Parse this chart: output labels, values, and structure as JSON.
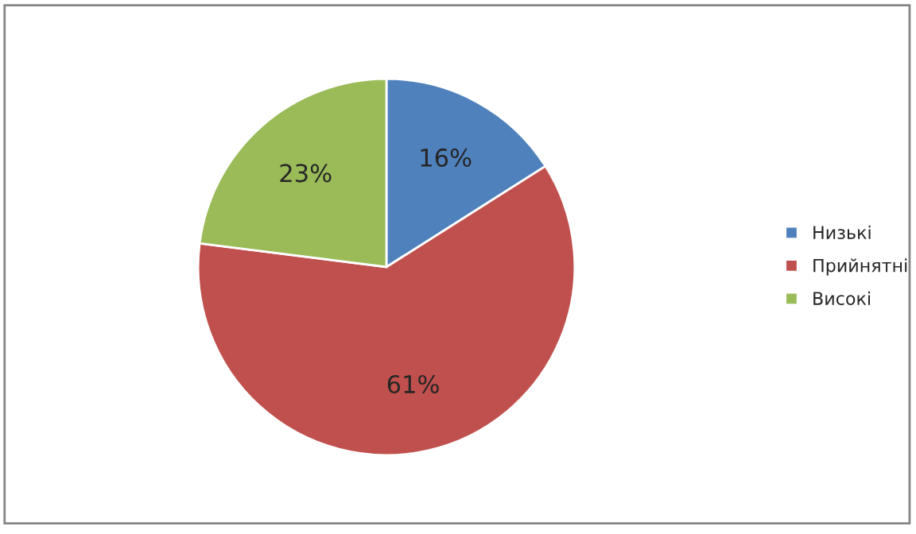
{
  "chart_data": {
    "type": "pie",
    "categories": [
      "Низькі",
      "Прийнятні",
      "Високі"
    ],
    "values": [
      16,
      61,
      23
    ],
    "colors": [
      "#4f81bd",
      "#c0504d",
      "#9bbb59"
    ],
    "value_labels": [
      "16%",
      "61%",
      "23%"
    ],
    "legend": "right"
  }
}
